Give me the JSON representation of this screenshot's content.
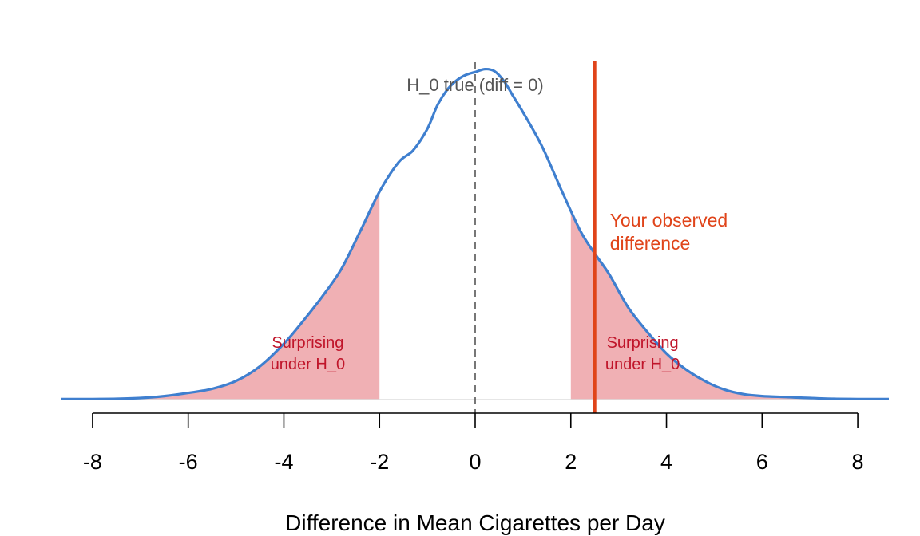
{
  "chart_data": {
    "type": "area",
    "title": "",
    "xlabel": "Difference in Mean Cigarettes per Day",
    "ylabel": "",
    "xlim": [
      -8.65,
      8.65
    ],
    "ylim": [
      0,
      0.172
    ],
    "x_ticks": [
      "-8",
      "-6",
      "-4",
      "-2",
      "0",
      "2",
      "4",
      "6",
      "8"
    ],
    "grid": false,
    "legend": "none",
    "density_curve": {
      "x": [
        -8.65,
        -8.0,
        -7.5,
        -7.0,
        -6.5,
        -6.0,
        -5.5,
        -5.0,
        -4.5,
        -4.0,
        -3.6,
        -3.2,
        -2.8,
        -2.4,
        -2.0,
        -1.6,
        -1.3,
        -1.0,
        -0.8,
        -0.6,
        -0.4,
        -0.2,
        0.0,
        0.2,
        0.4,
        0.6,
        0.8,
        1.0,
        1.4,
        1.8,
        2.2,
        2.5,
        2.8,
        3.2,
        3.6,
        4.0,
        4.4,
        4.8,
        5.2,
        5.6,
        6.0,
        6.5,
        7.0,
        7.5,
        8.0,
        8.65
      ],
      "y": [
        0.0003,
        0.0003,
        0.0004,
        0.0008,
        0.0018,
        0.0034,
        0.0055,
        0.0095,
        0.017,
        0.0285,
        0.04,
        0.0525,
        0.0665,
        0.086,
        0.106,
        0.121,
        0.127,
        0.138,
        0.1495,
        0.1575,
        0.1625,
        0.1655,
        0.167,
        0.1685,
        0.1675,
        0.1625,
        0.1545,
        0.1465,
        0.129,
        0.107,
        0.086,
        0.0745,
        0.064,
        0.047,
        0.0345,
        0.0235,
        0.0155,
        0.0095,
        0.0052,
        0.0028,
        0.0018,
        0.0013,
        0.0008,
        0.0004,
        0.0003,
        0.0003
      ]
    },
    "rejection_regions": [
      {
        "from": -8.65,
        "to": -2,
        "label_lines": [
          "Surprising",
          "under H_0"
        ],
        "label_x": -3.5,
        "color": "#f0b0b4"
      },
      {
        "from": 2,
        "to": 8.65,
        "label_lines": [
          "Surprising",
          "under H_0"
        ],
        "label_x": 3.5,
        "color": "#f0b0b4"
      }
    ],
    "null_line": {
      "x": 0,
      "label": "H_0 true (diff = 0)",
      "style": "dashed",
      "color": "#555555"
    },
    "observed_line": {
      "x": 2.5,
      "label_lines": [
        "Your observed",
        "difference"
      ],
      "color": "#e0441a"
    },
    "curve_color": "#3f7fcf",
    "region_label_color": "#c0152a"
  }
}
